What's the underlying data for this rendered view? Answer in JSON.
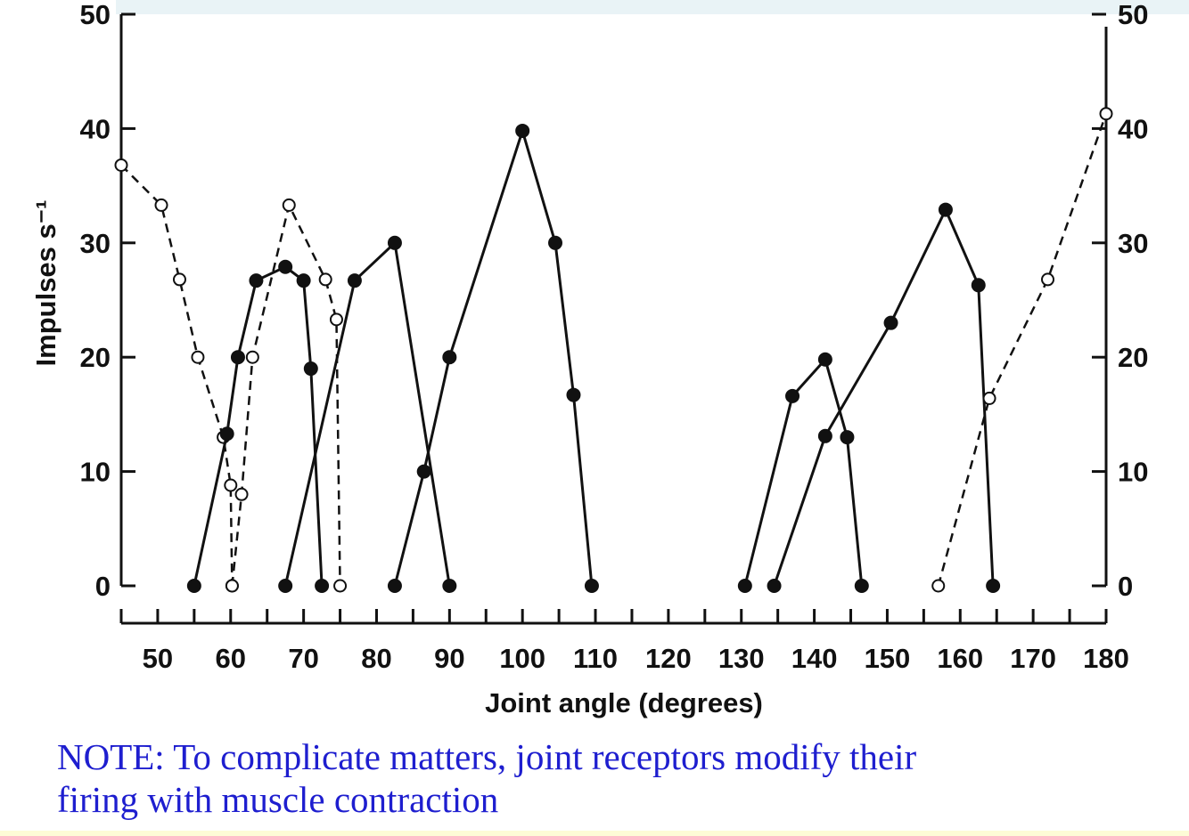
{
  "chart_data": {
    "type": "line",
    "xlabel": "Joint angle (degrees)",
    "ylabel": "Impulses s⁻¹",
    "xlim": [
      45,
      180
    ],
    "ylim": [
      0,
      50
    ],
    "x_ticks": [
      50,
      60,
      70,
      80,
      90,
      100,
      110,
      120,
      130,
      140,
      150,
      160,
      170,
      180
    ],
    "y_ticks": [
      0,
      10,
      20,
      30,
      40,
      50
    ],
    "y_ticks_right": [
      0,
      10,
      20,
      30,
      40,
      50
    ],
    "series": [
      {
        "marker": "open",
        "line": "dashed",
        "points": [
          [
            45,
            36.8
          ],
          [
            50.5,
            33.3
          ],
          [
            53,
            26.8
          ],
          [
            55.5,
            20
          ],
          [
            59,
            13
          ],
          [
            60,
            8.8
          ],
          [
            60.2,
            0
          ]
        ]
      },
      {
        "marker": "filled",
        "line": "solid",
        "points": [
          [
            55,
            0
          ],
          [
            59.5,
            13.3
          ],
          [
            61,
            20
          ],
          [
            63.5,
            26.7
          ],
          [
            67.5,
            27.9
          ],
          [
            70,
            26.7
          ],
          [
            71,
            19
          ],
          [
            72.5,
            0
          ]
        ]
      },
      {
        "marker": "open",
        "line": "dashed",
        "points": [
          [
            60.2,
            0
          ],
          [
            61.5,
            8
          ],
          [
            63,
            20
          ],
          [
            68,
            33.3
          ],
          [
            73,
            26.8
          ],
          [
            74.5,
            23.3
          ],
          [
            75,
            0
          ]
        ]
      },
      {
        "marker": "filled",
        "line": "solid",
        "points": [
          [
            67.5,
            0
          ],
          [
            77,
            26.7
          ],
          [
            82.5,
            30
          ],
          [
            90,
            0
          ]
        ]
      },
      {
        "marker": "filled",
        "line": "solid",
        "points": [
          [
            82.5,
            0
          ],
          [
            86.5,
            10
          ],
          [
            90,
            20
          ],
          [
            100,
            39.8
          ],
          [
            104.5,
            30
          ],
          [
            107,
            16.7
          ],
          [
            109.5,
            0
          ]
        ]
      },
      {
        "marker": "filled",
        "line": "solid",
        "points": [
          [
            130.5,
            0
          ],
          [
            137,
            16.6
          ],
          [
            141.5,
            19.8
          ],
          [
            144.5,
            13
          ],
          [
            146.5,
            0
          ]
        ]
      },
      {
        "marker": "filled",
        "line": "solid",
        "points": [
          [
            134.5,
            0
          ],
          [
            141.5,
            13.1
          ],
          [
            150.5,
            23
          ],
          [
            158,
            32.9
          ],
          [
            162.5,
            26.3
          ],
          [
            164.5,
            0
          ]
        ]
      },
      {
        "marker": "open",
        "line": "dashed",
        "points": [
          [
            157,
            0
          ],
          [
            164,
            16.4
          ],
          [
            172,
            26.8
          ],
          [
            180,
            41.3
          ]
        ]
      }
    ]
  },
  "note": {
    "line1": "NOTE: To complicate matters, joint receptors modify their",
    "line2": "firing with muscle contraction"
  }
}
